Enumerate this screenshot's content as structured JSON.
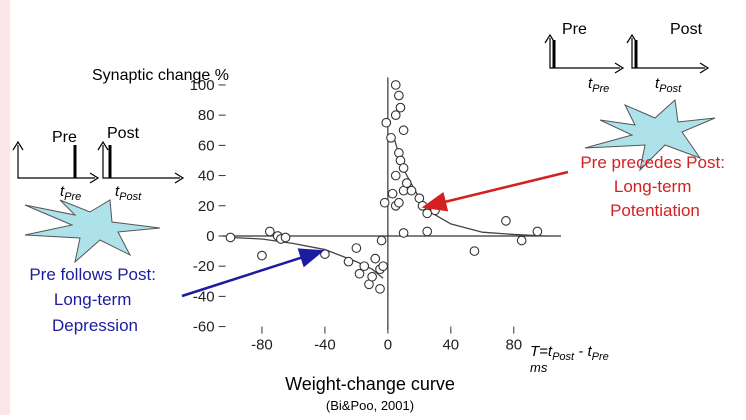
{
  "chart_data": {
    "type": "scatter",
    "y_label": "Synaptic change %",
    "x_label_parts": [
      "T=t",
      "Post",
      " - t",
      "Pre"
    ],
    "x_unit": "ms",
    "title": "Weight-change curve",
    "subtitle": "(Bi&Poo, 2001)",
    "x": [
      -100,
      -80,
      -75,
      -70,
      -68,
      -65,
      -40,
      -25,
      -20,
      -18,
      -15,
      -12,
      -10,
      -8,
      -5,
      -3,
      -5,
      -4,
      -2,
      -1,
      2,
      5,
      5,
      7,
      8,
      5,
      10,
      7,
      8,
      10,
      10,
      5,
      7,
      12,
      15,
      20,
      22,
      25,
      30,
      10,
      25,
      55,
      75,
      85,
      95,
      3
    ],
    "values": [
      -1,
      -13,
      3,
      0,
      -2,
      -1,
      -12,
      -17,
      -8,
      -25,
      -20,
      -32,
      -27,
      -15,
      -22,
      -20,
      -35,
      -3,
      22,
      75,
      65,
      40,
      100,
      93,
      85,
      80,
      70,
      55,
      50,
      45,
      30,
      20,
      22,
      35,
      30,
      25,
      20,
      15,
      17,
      2,
      3,
      -10,
      10,
      -3,
      3,
      28
    ],
    "color": "#333333",
    "fits": [
      {
        "x": [
          3,
          10,
          20,
          30,
          40,
          60,
          80,
          100
        ],
        "y": [
          68,
          44,
          25,
          14,
          8,
          2.5,
          1,
          0
        ]
      },
      {
        "x": [
          -100,
          -80,
          -60,
          -40,
          -20,
          -10,
          -3
        ],
        "y": [
          -1,
          -2,
          -5,
          -9,
          -17,
          -22,
          -28
        ]
      }
    ],
    "xlim": [
      -105,
      110
    ],
    "ylim": [
      -62,
      105
    ],
    "xticks": [
      -80,
      -40,
      0,
      40,
      80
    ],
    "yticks": [
      -60,
      -40,
      -20,
      0,
      20,
      40,
      60,
      80,
      100
    ]
  },
  "labels": {
    "left_pre": "Pre",
    "left_post": "Post",
    "left_t1": "t",
    "left_t1_sub": "Pre",
    "left_t2": "t",
    "left_t2_sub": "Post",
    "right_pre": "Pre",
    "right_post": "Post",
    "right_t1": "t",
    "right_t1_sub": "Pre",
    "right_t2": "t",
    "right_t2_sub": "Post",
    "ltp": [
      "Pre precedes Post:",
      "Long-term",
      "Potentiation"
    ],
    "ltd": [
      "Pre follows Post:",
      "Long-term",
      "Depression"
    ]
  }
}
